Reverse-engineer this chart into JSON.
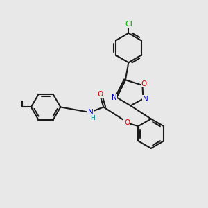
{
  "background_color": "#e8e8e8",
  "bond_color": "#1a1a1a",
  "bond_width": 1.5,
  "font_size": 8,
  "atom_colors": {
    "C": "#1a1a1a",
    "N": "#0000cc",
    "O": "#cc0000",
    "Cl": "#00aa00",
    "H": "#1a1a1a",
    "NH": "#008080"
  }
}
